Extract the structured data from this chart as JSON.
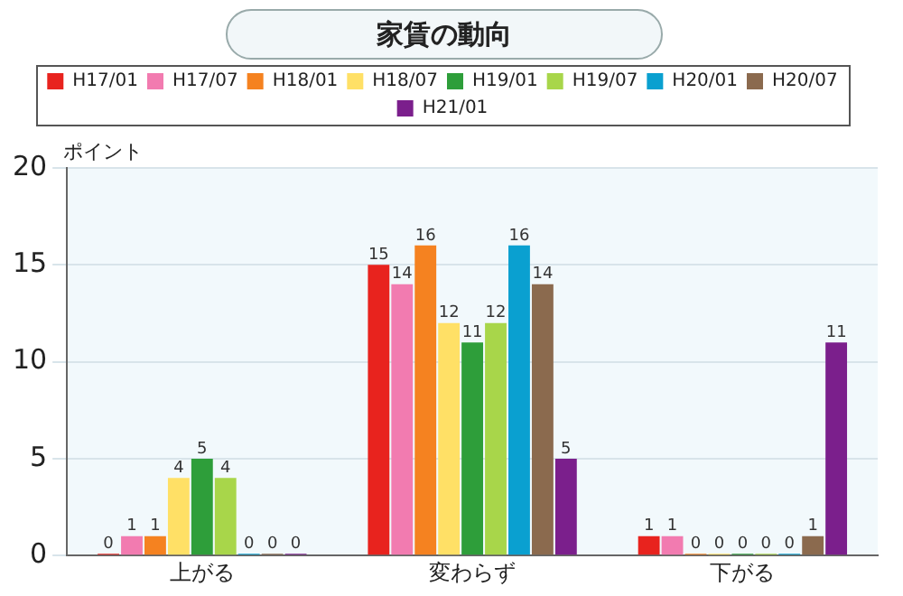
{
  "chart_data": {
    "type": "bar",
    "title": "家賃の動向",
    "ylabel": "ポイント",
    "categories": [
      "上がる",
      "変わらず",
      "下がる"
    ],
    "series": [
      {
        "name": "H17/01",
        "color": "#e8231e",
        "values": [
          0,
          15,
          1
        ]
      },
      {
        "name": "H17/07",
        "color": "#f27bb0",
        "values": [
          1,
          14,
          1
        ]
      },
      {
        "name": "H18/01",
        "color": "#f58220",
        "values": [
          1,
          16,
          0
        ]
      },
      {
        "name": "H18/07",
        "color": "#ffe066",
        "values": [
          4,
          12,
          0
        ]
      },
      {
        "name": "H19/01",
        "color": "#2e9e3a",
        "values": [
          5,
          11,
          0
        ]
      },
      {
        "name": "H19/07",
        "color": "#a8d64a",
        "values": [
          4,
          12,
          0
        ]
      },
      {
        "name": "H20/01",
        "color": "#0aa0d0",
        "values": [
          0,
          16,
          0
        ]
      },
      {
        "name": "H20/07",
        "color": "#8b6a4e",
        "values": [
          0,
          14,
          1
        ]
      },
      {
        "name": "H21/01",
        "color": "#7b1f8c",
        "values": [
          0,
          5,
          11
        ]
      }
    ],
    "ylim": [
      0,
      20
    ],
    "yticks": [
      0,
      5,
      10,
      15,
      20
    ],
    "grid": "y",
    "legend": "top",
    "data_labels": true
  }
}
